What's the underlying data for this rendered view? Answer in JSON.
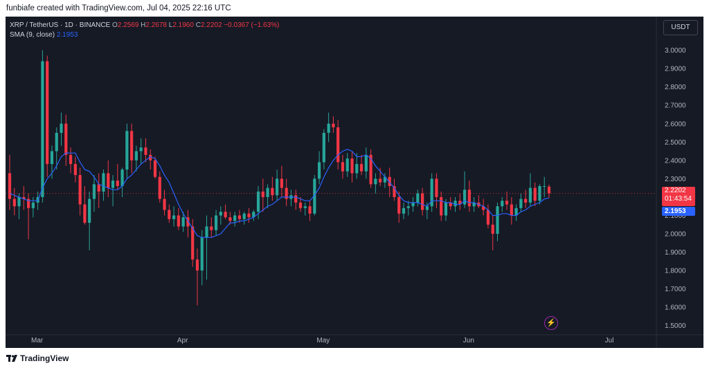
{
  "header": {
    "created_by": "funbiafe created with TradingView.com, Jul 04, 2025 22:16 UTC"
  },
  "footer": {
    "brand": "TradingView"
  },
  "legend": {
    "symbol": "XRP / TetherUS · 1D · BINANCE",
    "o_label": "O",
    "o": "2.2569",
    "h_label": "H",
    "h": "2.2678",
    "l_label": "L",
    "l": "2.1960",
    "c_label": "C",
    "c": "2.2202",
    "change": "−0.0367 (−1.63%)",
    "sma_label": "SMA (9, close)",
    "sma_value": "2.1953"
  },
  "currency": "USDT",
  "price_tag": {
    "price": "2.2202",
    "countdown": "01:43:54"
  },
  "sma_tag": "2.1953",
  "icons": {
    "flash": "flash-icon",
    "logo": "tradingview-logo-icon"
  },
  "colors": {
    "up": "#26a69a",
    "down": "#f23645",
    "sma": "#2962ff",
    "background": "#161a25"
  },
  "chart_data": {
    "type": "candlestick",
    "title": "XRP / TetherUS · 1D · BINANCE",
    "x_labels": [
      "Mar",
      "Apr",
      "May",
      "Jun",
      "Jul"
    ],
    "y_ticks": [
      "1.5000",
      "1.6000",
      "1.7000",
      "1.8000",
      "1.9000",
      "2.0000",
      "2.1000",
      "2.2000",
      "2.3000",
      "2.4000",
      "2.5000",
      "2.6000",
      "2.7000",
      "2.8000",
      "2.9000",
      "3.0000"
    ],
    "ylim": [
      1.45,
      3.07
    ],
    "current_price": 2.2202,
    "sma_series": {
      "name": "SMA (9, close)",
      "last": 2.1953
    },
    "candles": [
      {
        "o": 2.33,
        "h": 2.43,
        "l": 2.13,
        "c": 2.19
      },
      {
        "o": 2.19,
        "h": 2.25,
        "l": 2.1,
        "c": 2.15
      },
      {
        "o": 2.15,
        "h": 2.22,
        "l": 2.08,
        "c": 2.2
      },
      {
        "o": 2.2,
        "h": 2.26,
        "l": 2.13,
        "c": 2.19
      },
      {
        "o": 2.19,
        "h": 2.22,
        "l": 1.97,
        "c": 2.14
      },
      {
        "o": 2.14,
        "h": 2.2,
        "l": 2.09,
        "c": 2.17
      },
      {
        "o": 2.17,
        "h": 2.23,
        "l": 2.13,
        "c": 2.2
      },
      {
        "o": 2.2,
        "h": 3.0,
        "l": 2.17,
        "c": 2.94
      },
      {
        "o": 2.94,
        "h": 2.97,
        "l": 2.31,
        "c": 2.38
      },
      {
        "o": 2.38,
        "h": 2.48,
        "l": 2.3,
        "c": 2.45
      },
      {
        "o": 2.45,
        "h": 2.58,
        "l": 2.35,
        "c": 2.55
      },
      {
        "o": 2.55,
        "h": 2.66,
        "l": 2.48,
        "c": 2.6
      },
      {
        "o": 2.6,
        "h": 2.65,
        "l": 2.37,
        "c": 2.43
      },
      {
        "o": 2.43,
        "h": 2.47,
        "l": 2.33,
        "c": 2.38
      },
      {
        "o": 2.38,
        "h": 2.42,
        "l": 2.28,
        "c": 2.32
      },
      {
        "o": 2.32,
        "h": 2.36,
        "l": 2.1,
        "c": 2.16
      },
      {
        "o": 2.16,
        "h": 2.26,
        "l": 2.05,
        "c": 2.06
      },
      {
        "o": 2.06,
        "h": 2.23,
        "l": 1.91,
        "c": 2.19
      },
      {
        "o": 2.19,
        "h": 2.32,
        "l": 2.12,
        "c": 2.27
      },
      {
        "o": 2.27,
        "h": 2.33,
        "l": 2.14,
        "c": 2.23
      },
      {
        "o": 2.23,
        "h": 2.35,
        "l": 2.18,
        "c": 2.33
      },
      {
        "o": 2.33,
        "h": 2.4,
        "l": 2.2,
        "c": 2.25
      },
      {
        "o": 2.25,
        "h": 2.32,
        "l": 2.15,
        "c": 2.29
      },
      {
        "o": 2.29,
        "h": 2.38,
        "l": 2.24,
        "c": 2.26
      },
      {
        "o": 2.26,
        "h": 2.36,
        "l": 2.2,
        "c": 2.35
      },
      {
        "o": 2.35,
        "h": 2.6,
        "l": 2.3,
        "c": 2.56
      },
      {
        "o": 2.56,
        "h": 2.6,
        "l": 2.33,
        "c": 2.4
      },
      {
        "o": 2.4,
        "h": 2.48,
        "l": 2.34,
        "c": 2.45
      },
      {
        "o": 2.45,
        "h": 2.52,
        "l": 2.38,
        "c": 2.47
      },
      {
        "o": 2.47,
        "h": 2.52,
        "l": 2.39,
        "c": 2.43
      },
      {
        "o": 2.43,
        "h": 2.46,
        "l": 2.35,
        "c": 2.4
      },
      {
        "o": 2.4,
        "h": 2.42,
        "l": 2.3,
        "c": 2.31
      },
      {
        "o": 2.31,
        "h": 2.34,
        "l": 2.17,
        "c": 2.19
      },
      {
        "o": 2.19,
        "h": 2.24,
        "l": 2.1,
        "c": 2.13
      },
      {
        "o": 2.13,
        "h": 2.16,
        "l": 2.06,
        "c": 2.08
      },
      {
        "o": 2.08,
        "h": 2.15,
        "l": 2.04,
        "c": 2.1
      },
      {
        "o": 2.1,
        "h": 2.14,
        "l": 2.02,
        "c": 2.04
      },
      {
        "o": 2.04,
        "h": 2.12,
        "l": 2.01,
        "c": 2.09
      },
      {
        "o": 2.09,
        "h": 2.13,
        "l": 1.98,
        "c": 2.04
      },
      {
        "o": 2.04,
        "h": 2.08,
        "l": 1.82,
        "c": 1.86
      },
      {
        "o": 1.86,
        "h": 1.92,
        "l": 1.61,
        "c": 1.8
      },
      {
        "o": 1.8,
        "h": 2.02,
        "l": 1.72,
        "c": 1.98
      },
      {
        "o": 1.98,
        "h": 2.1,
        "l": 1.75,
        "c": 2.04
      },
      {
        "o": 2.04,
        "h": 2.09,
        "l": 1.98,
        "c": 2.02
      },
      {
        "o": 2.02,
        "h": 2.13,
        "l": 1.99,
        "c": 2.1
      },
      {
        "o": 2.1,
        "h": 2.15,
        "l": 2.05,
        "c": 2.12
      },
      {
        "o": 2.12,
        "h": 2.16,
        "l": 2.08,
        "c": 2.09
      },
      {
        "o": 2.09,
        "h": 2.12,
        "l": 2.05,
        "c": 2.07
      },
      {
        "o": 2.07,
        "h": 2.12,
        "l": 2.04,
        "c": 2.1
      },
      {
        "o": 2.1,
        "h": 2.13,
        "l": 2.06,
        "c": 2.08
      },
      {
        "o": 2.08,
        "h": 2.12,
        "l": 2.05,
        "c": 2.11
      },
      {
        "o": 2.11,
        "h": 2.14,
        "l": 2.06,
        "c": 2.09
      },
      {
        "o": 2.09,
        "h": 2.13,
        "l": 2.07,
        "c": 2.12
      },
      {
        "o": 2.12,
        "h": 2.26,
        "l": 2.08,
        "c": 2.23
      },
      {
        "o": 2.23,
        "h": 2.3,
        "l": 2.12,
        "c": 2.2
      },
      {
        "o": 2.2,
        "h": 2.27,
        "l": 2.14,
        "c": 2.25
      },
      {
        "o": 2.25,
        "h": 2.31,
        "l": 2.18,
        "c": 2.21
      },
      {
        "o": 2.21,
        "h": 2.35,
        "l": 2.18,
        "c": 2.3
      },
      {
        "o": 2.3,
        "h": 2.37,
        "l": 2.2,
        "c": 2.25
      },
      {
        "o": 2.25,
        "h": 2.3,
        "l": 2.15,
        "c": 2.19
      },
      {
        "o": 2.19,
        "h": 2.24,
        "l": 2.15,
        "c": 2.21
      },
      {
        "o": 2.21,
        "h": 2.24,
        "l": 2.13,
        "c": 2.17
      },
      {
        "o": 2.17,
        "h": 2.2,
        "l": 2.12,
        "c": 2.14
      },
      {
        "o": 2.14,
        "h": 2.17,
        "l": 2.1,
        "c": 2.15
      },
      {
        "o": 2.15,
        "h": 2.18,
        "l": 2.07,
        "c": 2.11
      },
      {
        "o": 2.11,
        "h": 2.32,
        "l": 2.1,
        "c": 2.3
      },
      {
        "o": 2.3,
        "h": 2.45,
        "l": 2.27,
        "c": 2.39
      },
      {
        "o": 2.39,
        "h": 2.57,
        "l": 2.35,
        "c": 2.55
      },
      {
        "o": 2.55,
        "h": 2.66,
        "l": 2.5,
        "c": 2.6
      },
      {
        "o": 2.6,
        "h": 2.64,
        "l": 2.55,
        "c": 2.58
      },
      {
        "o": 2.58,
        "h": 2.62,
        "l": 2.35,
        "c": 2.39
      },
      {
        "o": 2.39,
        "h": 2.43,
        "l": 2.3,
        "c": 2.34
      },
      {
        "o": 2.34,
        "h": 2.44,
        "l": 2.31,
        "c": 2.41
      },
      {
        "o": 2.41,
        "h": 2.45,
        "l": 2.28,
        "c": 2.33
      },
      {
        "o": 2.33,
        "h": 2.44,
        "l": 2.3,
        "c": 2.38
      },
      {
        "o": 2.38,
        "h": 2.43,
        "l": 2.32,
        "c": 2.34
      },
      {
        "o": 2.34,
        "h": 2.47,
        "l": 2.3,
        "c": 2.43
      },
      {
        "o": 2.43,
        "h": 2.46,
        "l": 2.25,
        "c": 2.27
      },
      {
        "o": 2.27,
        "h": 2.33,
        "l": 2.22,
        "c": 2.3
      },
      {
        "o": 2.3,
        "h": 2.36,
        "l": 2.26,
        "c": 2.28
      },
      {
        "o": 2.28,
        "h": 2.33,
        "l": 2.25,
        "c": 2.31
      },
      {
        "o": 2.31,
        "h": 2.36,
        "l": 2.2,
        "c": 2.26
      },
      {
        "o": 2.26,
        "h": 2.3,
        "l": 2.18,
        "c": 2.2
      },
      {
        "o": 2.2,
        "h": 2.23,
        "l": 2.06,
        "c": 2.11
      },
      {
        "o": 2.11,
        "h": 2.17,
        "l": 2.08,
        "c": 2.14
      },
      {
        "o": 2.14,
        "h": 2.18,
        "l": 2.1,
        "c": 2.15
      },
      {
        "o": 2.15,
        "h": 2.2,
        "l": 2.12,
        "c": 2.17
      },
      {
        "o": 2.17,
        "h": 2.24,
        "l": 2.15,
        "c": 2.22
      },
      {
        "o": 2.22,
        "h": 2.25,
        "l": 2.1,
        "c": 2.13
      },
      {
        "o": 2.13,
        "h": 2.17,
        "l": 2.08,
        "c": 2.15
      },
      {
        "o": 2.15,
        "h": 2.33,
        "l": 2.12,
        "c": 2.3
      },
      {
        "o": 2.3,
        "h": 2.33,
        "l": 2.14,
        "c": 2.2
      },
      {
        "o": 2.2,
        "h": 2.23,
        "l": 2.07,
        "c": 2.1
      },
      {
        "o": 2.1,
        "h": 2.19,
        "l": 2.07,
        "c": 2.17
      },
      {
        "o": 2.17,
        "h": 2.2,
        "l": 2.13,
        "c": 2.15
      },
      {
        "o": 2.15,
        "h": 2.2,
        "l": 2.12,
        "c": 2.18
      },
      {
        "o": 2.18,
        "h": 2.22,
        "l": 2.13,
        "c": 2.16
      },
      {
        "o": 2.16,
        "h": 2.34,
        "l": 2.14,
        "c": 2.24
      },
      {
        "o": 2.24,
        "h": 2.29,
        "l": 2.12,
        "c": 2.15
      },
      {
        "o": 2.15,
        "h": 2.2,
        "l": 2.12,
        "c": 2.17
      },
      {
        "o": 2.17,
        "h": 2.21,
        "l": 2.14,
        "c": 2.15
      },
      {
        "o": 2.15,
        "h": 2.19,
        "l": 2.1,
        "c": 2.13
      },
      {
        "o": 2.13,
        "h": 2.16,
        "l": 2.03,
        "c": 2.05
      },
      {
        "o": 2.05,
        "h": 2.1,
        "l": 1.91,
        "c": 2.0
      },
      {
        "o": 2.0,
        "h": 2.17,
        "l": 1.96,
        "c": 2.15
      },
      {
        "o": 2.15,
        "h": 2.2,
        "l": 2.12,
        "c": 2.18
      },
      {
        "o": 2.18,
        "h": 2.23,
        "l": 2.13,
        "c": 2.16
      },
      {
        "o": 2.16,
        "h": 2.2,
        "l": 2.05,
        "c": 2.1
      },
      {
        "o": 2.1,
        "h": 2.16,
        "l": 2.07,
        "c": 2.14
      },
      {
        "o": 2.14,
        "h": 2.22,
        "l": 2.12,
        "c": 2.19
      },
      {
        "o": 2.19,
        "h": 2.24,
        "l": 2.14,
        "c": 2.17
      },
      {
        "o": 2.17,
        "h": 2.33,
        "l": 2.15,
        "c": 2.25
      },
      {
        "o": 2.25,
        "h": 2.28,
        "l": 2.15,
        "c": 2.18
      },
      {
        "o": 2.18,
        "h": 2.27,
        "l": 2.16,
        "c": 2.26
      },
      {
        "o": 2.26,
        "h": 2.31,
        "l": 2.2,
        "c": 2.26
      },
      {
        "o": 2.257,
        "h": 2.268,
        "l": 2.196,
        "c": 2.2202
      }
    ],
    "sma": [
      2.22,
      2.21,
      2.2,
      2.19,
      2.18,
      2.18,
      2.18,
      2.25,
      2.3,
      2.33,
      2.37,
      2.42,
      2.44,
      2.44,
      2.44,
      2.39,
      2.35,
      2.34,
      2.31,
      2.27,
      2.26,
      2.25,
      2.24,
      2.24,
      2.26,
      2.3,
      2.32,
      2.35,
      2.38,
      2.4,
      2.42,
      2.41,
      2.37,
      2.32,
      2.28,
      2.22,
      2.16,
      2.11,
      2.07,
      2.03,
      1.99,
      1.98,
      1.98,
      1.98,
      1.99,
      2.0,
      2.03,
      2.06,
      2.06,
      2.07,
      2.07,
      2.08,
      2.09,
      2.11,
      2.13,
      2.15,
      2.16,
      2.18,
      2.2,
      2.2,
      2.2,
      2.2,
      2.19,
      2.18,
      2.18,
      2.21,
      2.25,
      2.31,
      2.36,
      2.4,
      2.43,
      2.45,
      2.46,
      2.45,
      2.42,
      2.42,
      2.43,
      2.41,
      2.37,
      2.34,
      2.31,
      2.28,
      2.25,
      2.21,
      2.18,
      2.17,
      2.17,
      2.17,
      2.16,
      2.15,
      2.18,
      2.18,
      2.18,
      2.17,
      2.17,
      2.16,
      2.16,
      2.18,
      2.17,
      2.17,
      2.16,
      2.15,
      2.13,
      2.1,
      2.1,
      2.11,
      2.11,
      2.1,
      2.1,
      2.12,
      2.13,
      2.15,
      2.16,
      2.17,
      2.19,
      2.1953
    ]
  }
}
